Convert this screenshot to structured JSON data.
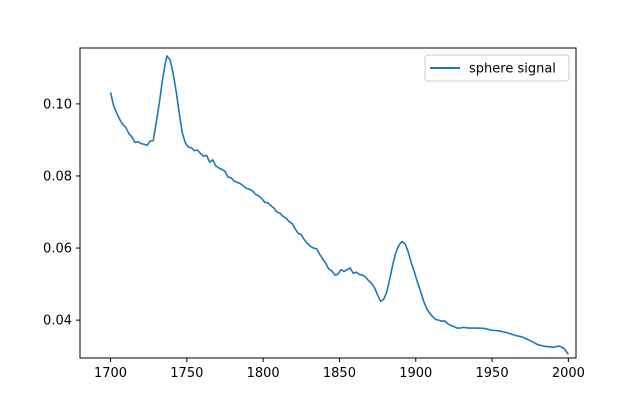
{
  "chart_data": {
    "type": "line",
    "title": "",
    "xlabel": "",
    "ylabel": "",
    "xlim": [
      1680,
      2005
    ],
    "ylim": [
      0.0295,
      0.1155
    ],
    "xticks": [
      1700,
      1750,
      1800,
      1850,
      1900,
      1950,
      2000
    ],
    "xtick_labels": [
      "1700",
      "1750",
      "1800",
      "1850",
      "1900",
      "1950",
      "2000"
    ],
    "yticks": [
      0.04,
      0.06,
      0.08,
      0.1
    ],
    "ytick_labels": [
      "0.04",
      "0.06",
      "0.08",
      "0.10"
    ],
    "grid": false,
    "legend_position": "top-right",
    "series": [
      {
        "name": "sphere signal",
        "color": "#1f77b4",
        "points": [
          [
            1700,
            0.1032
          ],
          [
            1702,
            0.0995
          ],
          [
            1704,
            0.0975
          ],
          [
            1706,
            0.0957
          ],
          [
            1708,
            0.0943
          ],
          [
            1710,
            0.0935
          ],
          [
            1712,
            0.0918
          ],
          [
            1714,
            0.0908
          ],
          [
            1716,
            0.0893
          ],
          [
            1718,
            0.0895
          ],
          [
            1720,
            0.089
          ],
          [
            1722,
            0.0888
          ],
          [
            1724,
            0.0885
          ],
          [
            1726,
            0.0897
          ],
          [
            1728,
            0.0898
          ],
          [
            1730,
            0.095
          ],
          [
            1732,
            0.1003
          ],
          [
            1734,
            0.1065
          ],
          [
            1736,
            0.1115
          ],
          [
            1737,
            0.1133
          ],
          [
            1739,
            0.1122
          ],
          [
            1741,
            0.1085
          ],
          [
            1743,
            0.1035
          ],
          [
            1745,
            0.0975
          ],
          [
            1747,
            0.092
          ],
          [
            1749,
            0.0892
          ],
          [
            1751,
            0.088
          ],
          [
            1753,
            0.0878
          ],
          [
            1755,
            0.087
          ],
          [
            1757,
            0.0872
          ],
          [
            1759,
            0.0862
          ],
          [
            1761,
            0.0855
          ],
          [
            1763,
            0.0857
          ],
          [
            1765,
            0.0838
          ],
          [
            1767,
            0.0845
          ],
          [
            1769,
            0.0828
          ],
          [
            1771,
            0.0822
          ],
          [
            1773,
            0.0818
          ],
          [
            1775,
            0.0813
          ],
          [
            1777,
            0.0797
          ],
          [
            1779,
            0.0795
          ],
          [
            1781,
            0.0786
          ],
          [
            1783,
            0.0782
          ],
          [
            1785,
            0.0779
          ],
          [
            1787,
            0.0772
          ],
          [
            1789,
            0.0766
          ],
          [
            1791,
            0.0763
          ],
          [
            1793,
            0.0759
          ],
          [
            1795,
            0.0749
          ],
          [
            1797,
            0.0745
          ],
          [
            1799,
            0.0738
          ],
          [
            1801,
            0.0727
          ],
          [
            1803,
            0.0726
          ],
          [
            1805,
            0.0718
          ],
          [
            1807,
            0.0711
          ],
          [
            1809,
            0.07
          ],
          [
            1811,
            0.0697
          ],
          [
            1813,
            0.0688
          ],
          [
            1815,
            0.0683
          ],
          [
            1817,
            0.0673
          ],
          [
            1819,
            0.0668
          ],
          [
            1821,
            0.0653
          ],
          [
            1823,
            0.0641
          ],
          [
            1825,
            0.0637
          ],
          [
            1827,
            0.0623
          ],
          [
            1829,
            0.0613
          ],
          [
            1831,
            0.0605
          ],
          [
            1833,
            0.06
          ],
          [
            1835,
            0.0598
          ],
          [
            1837,
            0.0583
          ],
          [
            1839,
            0.057
          ],
          [
            1841,
            0.0558
          ],
          [
            1843,
            0.0542
          ],
          [
            1845,
            0.0537
          ],
          [
            1847,
            0.0525
          ],
          [
            1849,
            0.0527
          ],
          [
            1851,
            0.054
          ],
          [
            1853,
            0.0535
          ],
          [
            1855,
            0.054
          ],
          [
            1857,
            0.0545
          ],
          [
            1859,
            0.053
          ],
          [
            1861,
            0.0533
          ],
          [
            1863,
            0.0527
          ],
          [
            1865,
            0.0525
          ],
          [
            1867,
            0.052
          ],
          [
            1869,
            0.051
          ],
          [
            1871,
            0.0502
          ],
          [
            1873,
            0.049
          ],
          [
            1875,
            0.047
          ],
          [
            1877,
            0.0452
          ],
          [
            1879,
            0.0458
          ],
          [
            1881,
            0.0478
          ],
          [
            1883,
            0.0515
          ],
          [
            1885,
            0.0555
          ],
          [
            1887,
            0.0588
          ],
          [
            1889,
            0.0608
          ],
          [
            1891,
            0.0618
          ],
          [
            1893,
            0.0612
          ],
          [
            1895,
            0.059
          ],
          [
            1897,
            0.056
          ],
          [
            1899,
            0.0535
          ],
          [
            1901,
            0.0507
          ],
          [
            1903,
            0.0482
          ],
          [
            1905,
            0.0455
          ],
          [
            1907,
            0.0433
          ],
          [
            1909,
            0.042
          ],
          [
            1911,
            0.041
          ],
          [
            1913,
            0.0402
          ],
          [
            1915,
            0.04
          ],
          [
            1917,
            0.0397
          ],
          [
            1919,
            0.0398
          ],
          [
            1921,
            0.039
          ],
          [
            1923,
            0.0385
          ],
          [
            1925,
            0.0382
          ],
          [
            1927,
            0.0378
          ],
          [
            1929,
            0.0378
          ],
          [
            1931,
            0.038
          ],
          [
            1935,
            0.0378
          ],
          [
            1940,
            0.0378
          ],
          [
            1945,
            0.0377
          ],
          [
            1950,
            0.0372
          ],
          [
            1955,
            0.037
          ],
          [
            1960,
            0.0365
          ],
          [
            1965,
            0.0358
          ],
          [
            1970,
            0.0353
          ],
          [
            1975,
            0.0343
          ],
          [
            1980,
            0.0332
          ],
          [
            1985,
            0.0327
          ],
          [
            1990,
            0.0325
          ],
          [
            1994,
            0.0328
          ],
          [
            1997,
            0.0322
          ],
          [
            2000,
            0.0305
          ]
        ]
      }
    ]
  }
}
